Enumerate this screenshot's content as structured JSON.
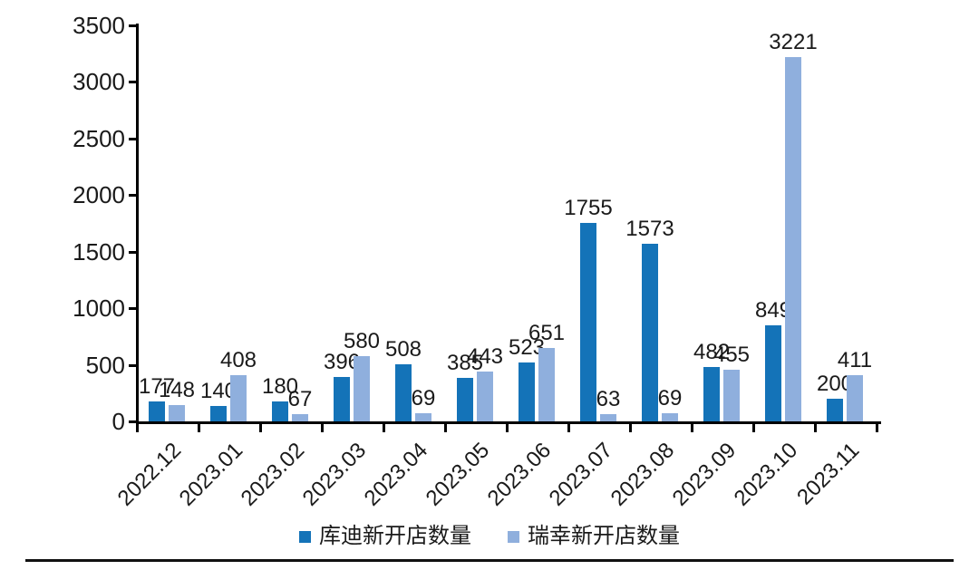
{
  "chart_data": {
    "type": "bar",
    "title": "",
    "xlabel": "",
    "ylabel": "",
    "categories": [
      "2022.12",
      "2023.01",
      "2023.02",
      "2023.03",
      "2023.04",
      "2023.05",
      "2023.06",
      "2023.07",
      "2023.08",
      "2023.09",
      "2023.10",
      "2023.11"
    ],
    "series": [
      {
        "name": "库迪新开店数量",
        "key": "kudi",
        "color": "#1473B8",
        "values": [
          177,
          140,
          180,
          396,
          508,
          385,
          523,
          1755,
          1573,
          482,
          849,
          200
        ]
      },
      {
        "name": "瑞幸新开店数量",
        "key": "luckin",
        "color": "#8FAFDD",
        "values": [
          148,
          408,
          67,
          580,
          69,
          443,
          651,
          63,
          69,
          455,
          3221,
          411
        ]
      }
    ],
    "ylim": [
      0,
      3500
    ],
    "yticks": [
      0,
      500,
      1000,
      1500,
      2000,
      2500,
      3000,
      3500
    ],
    "grid": false,
    "bar_value_labels": true,
    "legend_position": "bottom",
    "axis_color": "#000000",
    "text_color": "#1a1a1a"
  }
}
